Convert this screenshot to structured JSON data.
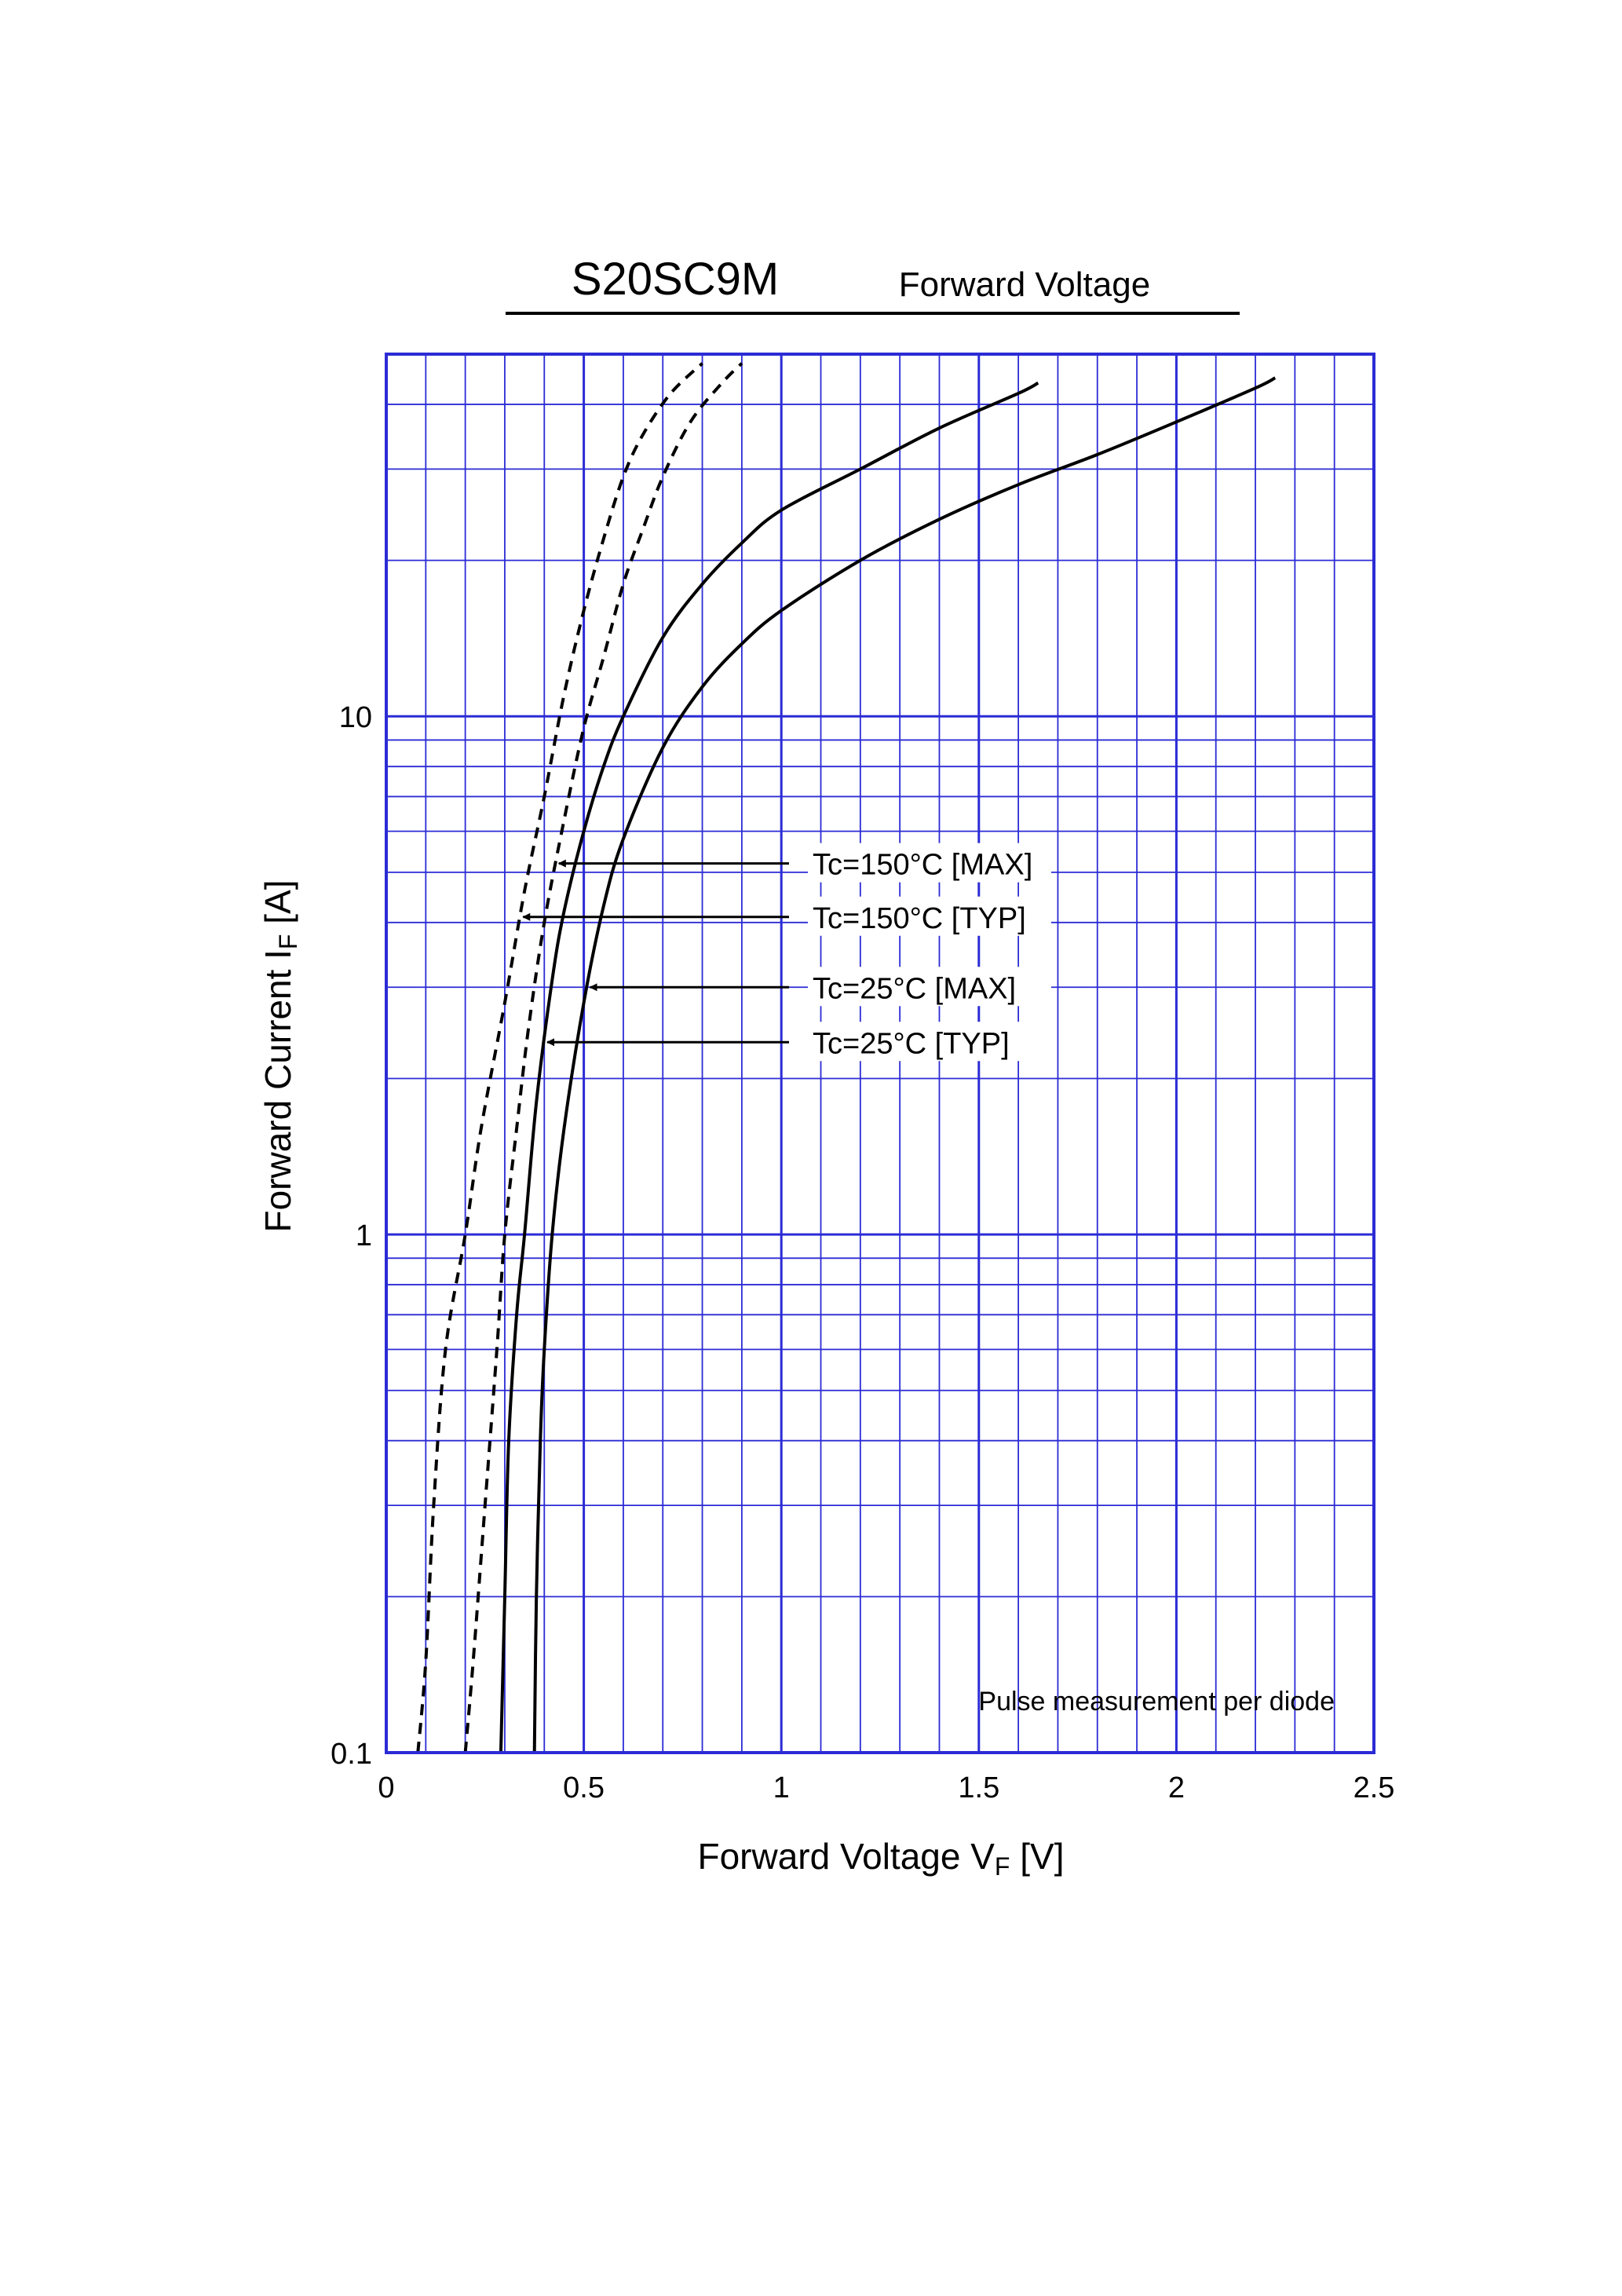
{
  "header": {
    "model": "S20SC9M",
    "subtitle": "Forward Voltage"
  },
  "chart_data": {
    "type": "line",
    "title": "S20SC9M",
    "subtitle": "Forward Voltage",
    "xlabel": "Forward Voltage VF [V]",
    "xlabel_parts": {
      "main": "Forward Voltage  V",
      "sub": "F",
      "unit": "  [V]"
    },
    "ylabel": "Forward Current IF [A]",
    "ylabel_parts": {
      "main": "Forward Current  I",
      "sub": "F",
      "unit": "  [A]"
    },
    "xlim": [
      0,
      2.5
    ],
    "ylim": [
      0.1,
      50
    ],
    "yscale": "log",
    "x_ticks": [
      {
        "value": 0,
        "label": "0"
      },
      {
        "value": 0.5,
        "label": "0.5"
      },
      {
        "value": 1,
        "label": "1"
      },
      {
        "value": 1.5,
        "label": "1.5"
      },
      {
        "value": 2,
        "label": "2"
      },
      {
        "value": 2.5,
        "label": "2.5"
      }
    ],
    "y_ticks": [
      {
        "value": 0.1,
        "label": "0.1"
      },
      {
        "value": 1,
        "label": "1"
      },
      {
        "value": 10,
        "label": "10"
      }
    ],
    "x_minor_step": 0.1,
    "grid": true,
    "grid_color": "#2b2bd6",
    "line_color": "#000000",
    "note": "Pulse measurement per diode",
    "series": [
      {
        "name": "Tc=150°C [MAX]",
        "style": "dashed",
        "label_anchor_x": 0.38,
        "points": [
          [
            0.2,
            0.1
          ],
          [
            0.22,
            0.15
          ],
          [
            0.25,
            0.3
          ],
          [
            0.28,
            0.6
          ],
          [
            0.3,
            1.0
          ],
          [
            0.33,
            1.6
          ],
          [
            0.36,
            2.5
          ],
          [
            0.4,
            4.0
          ],
          [
            0.45,
            6.3
          ],
          [
            0.5,
            9.5
          ],
          [
            0.55,
            13
          ],
          [
            0.6,
            18
          ],
          [
            0.65,
            23
          ],
          [
            0.7,
            29
          ],
          [
            0.77,
            37
          ],
          [
            0.85,
            44
          ],
          [
            0.9,
            48
          ]
        ]
      },
      {
        "name": "Tc=150°C [TYP]",
        "style": "dashed",
        "label_anchor_x": 0.42,
        "points": [
          [
            0.08,
            0.1
          ],
          [
            0.1,
            0.15
          ],
          [
            0.12,
            0.3
          ],
          [
            0.15,
            0.6
          ],
          [
            0.2,
            1.0
          ],
          [
            0.24,
            1.6
          ],
          [
            0.3,
            2.8
          ],
          [
            0.35,
            4.6
          ],
          [
            0.4,
            7.0
          ],
          [
            0.45,
            11
          ],
          [
            0.5,
            16
          ],
          [
            0.55,
            22
          ],
          [
            0.6,
            29
          ],
          [
            0.65,
            35
          ],
          [
            0.72,
            42
          ],
          [
            0.8,
            48
          ]
        ]
      },
      {
        "name": "Tc=25°C [MAX]",
        "style": "solid",
        "label_anchor_x": 0.52,
        "points": [
          [
            0.375,
            0.1
          ],
          [
            0.38,
            0.2
          ],
          [
            0.39,
            0.4
          ],
          [
            0.4,
            0.6
          ],
          [
            0.42,
            1.0
          ],
          [
            0.45,
            1.6
          ],
          [
            0.5,
            2.8
          ],
          [
            0.55,
            4.3
          ],
          [
            0.6,
            5.8
          ],
          [
            0.7,
            8.7
          ],
          [
            0.8,
            11.4
          ],
          [
            0.9,
            13.8
          ],
          [
            1.0,
            16
          ],
          [
            1.2,
            20
          ],
          [
            1.4,
            24
          ],
          [
            1.6,
            28
          ],
          [
            1.8,
            32
          ],
          [
            2.0,
            37
          ],
          [
            2.2,
            43
          ],
          [
            2.25,
            45
          ]
        ]
      },
      {
        "name": "Tc=25°C [TYP]",
        "style": "solid",
        "label_anchor_x": 0.36,
        "points": [
          [
            0.29,
            0.1
          ],
          [
            0.3,
            0.2
          ],
          [
            0.31,
            0.4
          ],
          [
            0.33,
            0.7
          ],
          [
            0.35,
            1.0
          ],
          [
            0.38,
            1.8
          ],
          [
            0.42,
            3.1
          ],
          [
            0.45,
            4.2
          ],
          [
            0.5,
            6.0
          ],
          [
            0.55,
            8.0
          ],
          [
            0.6,
            10
          ],
          [
            0.7,
            14.2
          ],
          [
            0.8,
            18
          ],
          [
            0.9,
            21.6
          ],
          [
            1.0,
            25
          ],
          [
            1.2,
            30
          ],
          [
            1.4,
            36
          ],
          [
            1.6,
            42
          ],
          [
            1.65,
            44
          ]
        ]
      }
    ],
    "annotations": [
      {
        "text": "Tc=150°C [MAX]",
        "series": "Tc=150°C [MAX]",
        "y": 5.2
      },
      {
        "text": "Tc=150°C [TYP]",
        "series": "Tc=150°C [TYP]",
        "y": 4.1
      },
      {
        "text": "Tc=25°C [MAX]",
        "series": "Tc=25°C [MAX]",
        "y": 3.0
      },
      {
        "text": "Tc=25°C [TYP]",
        "series": "Tc=25°C [TYP]",
        "y": 2.35
      }
    ]
  }
}
